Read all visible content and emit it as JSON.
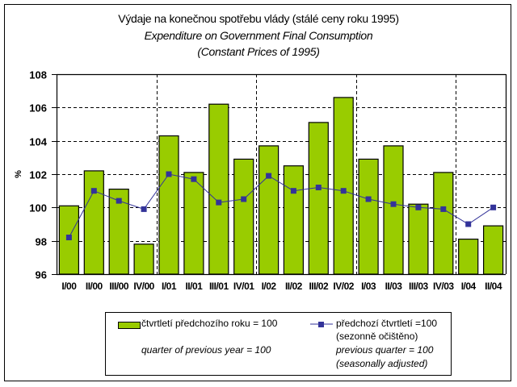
{
  "chart_data": {
    "type": "bar",
    "title": "Výdaje na konečnou spotřebu vlády (stálé ceny roku 1995)",
    "subtitle_lines": [
      "Expenditure on Government Final Consumption",
      "(Constant Prices of 1995)"
    ],
    "xlabel": "",
    "ylabel": "%",
    "ylim": [
      96,
      108
    ],
    "yticks": [
      96,
      98,
      100,
      102,
      104,
      106,
      108
    ],
    "ytick_labels": [
      "96",
      "98",
      "100",
      "102",
      "104",
      "106",
      "108"
    ],
    "grid": "horizontal dashed; vertical dashed year separators",
    "categories": [
      "I/00",
      "II/00",
      "III/00",
      "IV/00",
      "I/01",
      "II/01",
      "III/01",
      "IV/01",
      "I/02",
      "II/02",
      "III/02",
      "IV/02",
      "I/03",
      "II/03",
      "III/03",
      "IV/03",
      "I/04",
      "II/04"
    ],
    "series": [
      {
        "name": "čtvrtletí předchozího roku = 100",
        "name_en": "quarter of previous year = 100",
        "type": "bar",
        "color": "#99cc00",
        "values": [
          100.1,
          102.2,
          101.1,
          97.8,
          104.3,
          102.1,
          106.2,
          102.9,
          103.7,
          102.5,
          105.1,
          106.6,
          102.9,
          103.7,
          100.2,
          102.1,
          98.1,
          98.9
        ]
      },
      {
        "name": "předchozí čtvrtletí =100",
        "name_line2": "(sezonně očištěno)",
        "name_en": "previous quarter = 100",
        "name_en_line2": "(seasonally adjusted)",
        "type": "line",
        "color": "#333399",
        "values": [
          98.2,
          101.0,
          100.4,
          99.9,
          102.0,
          101.7,
          100.3,
          100.5,
          101.9,
          101.0,
          101.2,
          101.0,
          100.5,
          100.2,
          100.0,
          99.9,
          99.0,
          100.0
        ]
      }
    ],
    "year_separators_after": [
      "IV/00",
      "IV/01",
      "IV/02",
      "IV/03"
    ],
    "legend": "bottom"
  }
}
